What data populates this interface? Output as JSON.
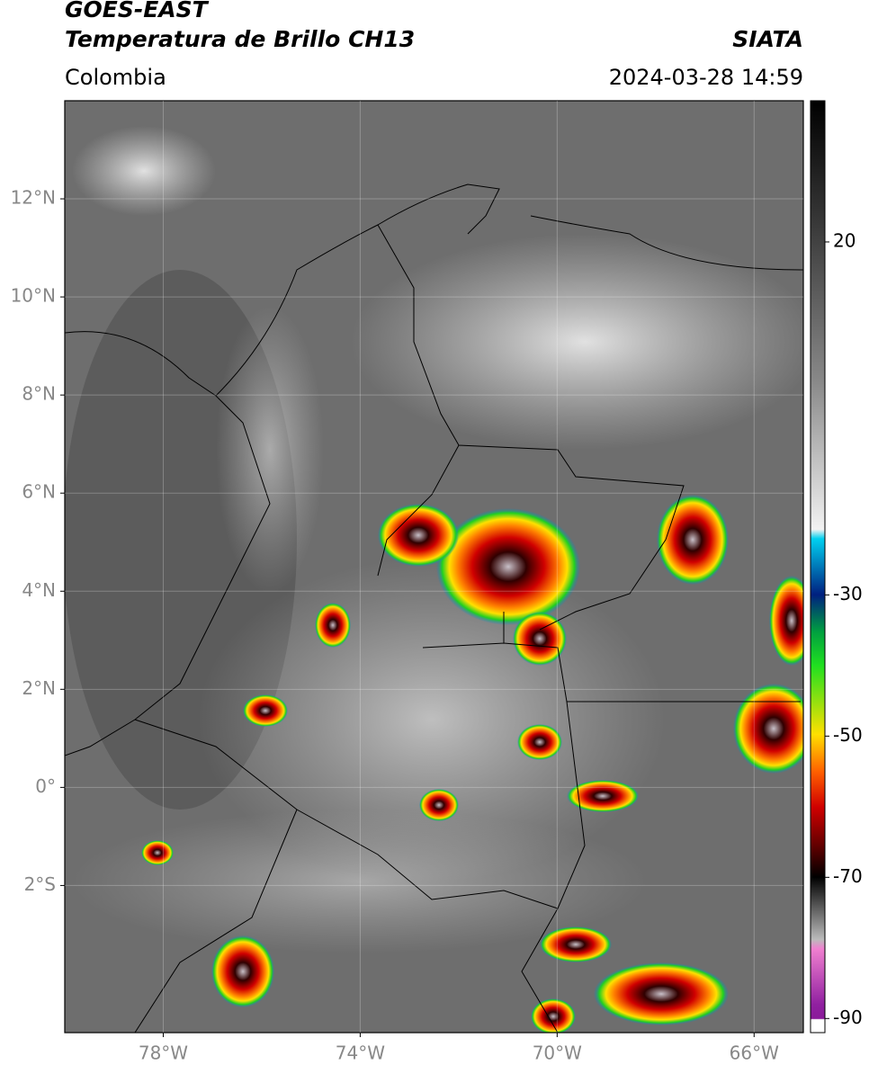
{
  "header": {
    "title_line1": "GOES-EAST",
    "title_line2": "Temperatura de Brillo CH13",
    "source": "SIATA",
    "region": "Colombia",
    "datetime": "2024-03-28 14:59"
  },
  "map": {
    "xlim": [
      -80,
      -65
    ],
    "ylim": [
      -5,
      14
    ],
    "xticks": [
      {
        "value": -78,
        "label": "78°W"
      },
      {
        "value": -74,
        "label": "74°W"
      },
      {
        "value": -70,
        "label": "70°W"
      },
      {
        "value": -66,
        "label": "66°W"
      }
    ],
    "yticks": [
      {
        "value": 12,
        "label": "12°N"
      },
      {
        "value": 10,
        "label": "10°N"
      },
      {
        "value": 8,
        "label": "8°N"
      },
      {
        "value": 6,
        "label": "6°N"
      },
      {
        "value": 4,
        "label": "4°N"
      },
      {
        "value": 2,
        "label": "2°N"
      },
      {
        "value": 0,
        "label": "0°"
      },
      {
        "value": -2,
        "label": "2°S"
      }
    ]
  },
  "colorbar": {
    "clim": [
      -92,
      40
    ],
    "ticks": [
      20,
      -30,
      -50,
      -70,
      -90
    ]
  }
}
